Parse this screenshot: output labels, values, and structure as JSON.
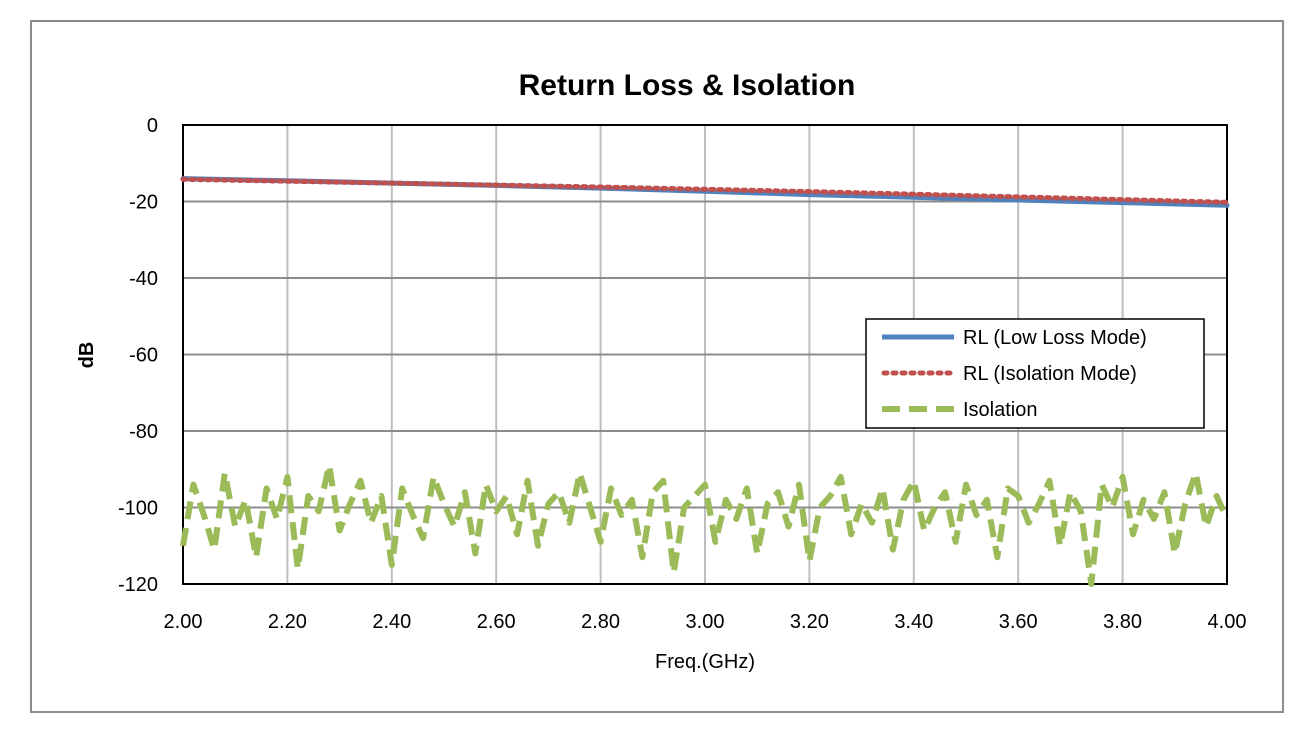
{
  "chart_data": {
    "type": "line",
    "title": "Return Loss & Isolation",
    "xlabel": "Freq.(GHz)",
    "ylabel": "dB",
    "xlim": [
      2.0,
      4.0
    ],
    "ylim": [
      -120,
      0
    ],
    "x_ticks": [
      "2.00",
      "2.20",
      "2.40",
      "2.60",
      "2.80",
      "3.00",
      "3.20",
      "3.40",
      "3.60",
      "3.80",
      "4.00"
    ],
    "y_ticks": [
      "0",
      "-20",
      "-40",
      "-60",
      "-80",
      "-100",
      "-120"
    ],
    "grid": true,
    "legend_position": "right",
    "series": [
      {
        "name": "RL (Low Loss Mode)",
        "color": "#4f81bd",
        "style": "solid",
        "x": [
          2.0,
          2.2,
          2.4,
          2.6,
          2.8,
          3.0,
          3.2,
          3.4,
          3.6,
          3.8,
          4.0
        ],
        "values": [
          -14.0,
          -14.6,
          -15.2,
          -15.8,
          -16.5,
          -17.3,
          -18.2,
          -18.9,
          -19.6,
          -20.3,
          -21.0
        ]
      },
      {
        "name": "RL (Isolation Mode)",
        "color": "#c0504d",
        "style": "dotted",
        "x": [
          2.0,
          2.2,
          2.4,
          2.6,
          2.8,
          3.0,
          3.2,
          3.4,
          3.6,
          3.8,
          4.0
        ],
        "values": [
          -14.2,
          -14.7,
          -15.2,
          -15.7,
          -16.2,
          -16.8,
          -17.4,
          -18.1,
          -18.8,
          -19.5,
          -20.2
        ]
      },
      {
        "name": "Isolation",
        "color": "#9bbb59",
        "style": "dashed",
        "x": [
          2.0,
          2.02,
          2.04,
          2.06,
          2.08,
          2.1,
          2.12,
          2.14,
          2.16,
          2.18,
          2.2,
          2.22,
          2.24,
          2.26,
          2.28,
          2.3,
          2.32,
          2.34,
          2.36,
          2.38,
          2.4,
          2.42,
          2.44,
          2.46,
          2.48,
          2.5,
          2.52,
          2.54,
          2.56,
          2.58,
          2.6,
          2.62,
          2.64,
          2.66,
          2.68,
          2.7,
          2.72,
          2.74,
          2.76,
          2.78,
          2.8,
          2.82,
          2.84,
          2.86,
          2.88,
          2.9,
          2.92,
          2.94,
          2.96,
          2.98,
          3.0,
          3.02,
          3.04,
          3.06,
          3.08,
          3.1,
          3.12,
          3.14,
          3.16,
          3.18,
          3.2,
          3.22,
          3.24,
          3.26,
          3.28,
          3.3,
          3.32,
          3.34,
          3.36,
          3.38,
          3.4,
          3.42,
          3.44,
          3.46,
          3.48,
          3.5,
          3.52,
          3.54,
          3.56,
          3.58,
          3.6,
          3.62,
          3.64,
          3.66,
          3.68,
          3.7,
          3.72,
          3.74,
          3.76,
          3.78,
          3.8,
          3.82,
          3.84,
          3.86,
          3.88,
          3.9,
          3.92,
          3.94,
          3.96,
          3.98,
          4.0
        ],
        "values": [
          -110,
          -94,
          -102,
          -111,
          -91,
          -105,
          -98,
          -113,
          -95,
          -103,
          -92,
          -116,
          -97,
          -101,
          -89,
          -106,
          -99,
          -93,
          -104,
          -97,
          -115,
          -95,
          -102,
          -108,
          -92,
          -99,
          -105,
          -96,
          -112,
          -94,
          -101,
          -97,
          -107,
          -93,
          -110,
          -99,
          -96,
          -104,
          -91,
          -100,
          -109,
          -95,
          -102,
          -98,
          -113,
          -96,
          -93,
          -117,
          -100,
          -97,
          -94,
          -109,
          -98,
          -103,
          -95,
          -112,
          -99,
          -96,
          -105,
          -94,
          -114,
          -100,
          -97,
          -92,
          -107,
          -99,
          -104,
          -95,
          -111,
          -98,
          -93,
          -106,
          -100,
          -96,
          -109,
          -94,
          -102,
          -98,
          -113,
          -95,
          -97,
          -104,
          -99,
          -93,
          -110,
          -96,
          -101,
          -120,
          -94,
          -100,
          -92,
          -107,
          -98,
          -103,
          -96,
          -112,
          -99,
          -91,
          -105,
          -97,
          -103
        ]
      }
    ]
  }
}
